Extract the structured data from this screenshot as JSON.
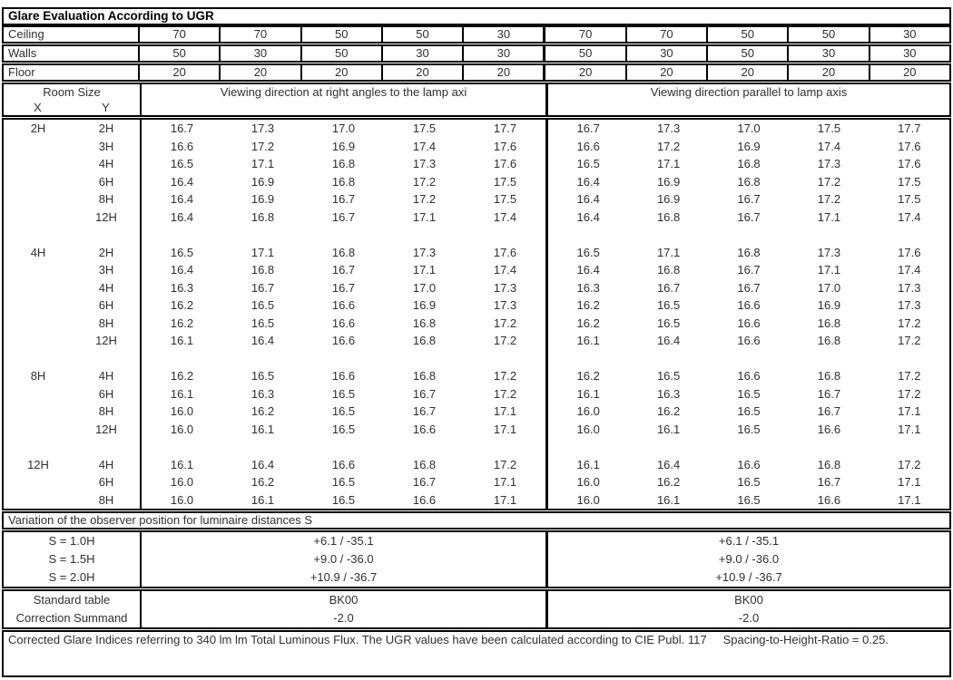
{
  "title": "Glare Evaluation According to UGR",
  "colors": {
    "border": "#000000",
    "text": "#303030",
    "background": "#ffffff"
  },
  "surfaces": [
    {
      "label": "Ceiling",
      "values": [
        "70",
        "70",
        "50",
        "50",
        "30",
        "70",
        "70",
        "50",
        "50",
        "30"
      ]
    },
    {
      "label": "Walls",
      "values": [
        "50",
        "30",
        "50",
        "30",
        "30",
        "50",
        "30",
        "50",
        "30",
        "30"
      ]
    },
    {
      "label": "Floor",
      "values": [
        "20",
        "20",
        "20",
        "20",
        "20",
        "20",
        "20",
        "20",
        "20",
        "20"
      ]
    }
  ],
  "headers": {
    "room_size": "Room Size",
    "x": "X",
    "y": "Y",
    "right_angles": "Viewing direction at right angles to the lamp axi",
    "parallel": "Viewing direction parallel to lamp axis"
  },
  "blocks": [
    {
      "x": "2H",
      "rows": [
        {
          "y": "2H",
          "right_angles": [
            "16.7",
            "17.3",
            "17.0",
            "17.5",
            "17.7"
          ],
          "parallel": [
            "16.7",
            "17.3",
            "17.0",
            "17.5",
            "17.7"
          ]
        },
        {
          "y": "3H",
          "right_angles": [
            "16.6",
            "17.2",
            "16.9",
            "17.4",
            "17.6"
          ],
          "parallel": [
            "16.6",
            "17.2",
            "16.9",
            "17.4",
            "17.6"
          ]
        },
        {
          "y": "4H",
          "right_angles": [
            "16.5",
            "17.1",
            "16.8",
            "17.3",
            "17.6"
          ],
          "parallel": [
            "16.5",
            "17.1",
            "16.8",
            "17.3",
            "17.6"
          ]
        },
        {
          "y": "6H",
          "right_angles": [
            "16.4",
            "16.9",
            "16.8",
            "17.2",
            "17.5"
          ],
          "parallel": [
            "16.4",
            "16.9",
            "16.8",
            "17.2",
            "17.5"
          ]
        },
        {
          "y": "8H",
          "right_angles": [
            "16.4",
            "16.9",
            "16.7",
            "17.2",
            "17.5"
          ],
          "parallel": [
            "16.4",
            "16.9",
            "16.7",
            "17.2",
            "17.5"
          ]
        },
        {
          "y": "12H",
          "right_angles": [
            "16.4",
            "16.8",
            "16.7",
            "17.1",
            "17.4"
          ],
          "parallel": [
            "16.4",
            "16.8",
            "16.7",
            "17.1",
            "17.4"
          ]
        }
      ]
    },
    {
      "x": "4H",
      "rows": [
        {
          "y": "2H",
          "right_angles": [
            "16.5",
            "17.1",
            "16.8",
            "17.3",
            "17.6"
          ],
          "parallel": [
            "16.5",
            "17.1",
            "16.8",
            "17.3",
            "17.6"
          ]
        },
        {
          "y": "3H",
          "right_angles": [
            "16.4",
            "16.8",
            "16.7",
            "17.1",
            "17.4"
          ],
          "parallel": [
            "16.4",
            "16.8",
            "16.7",
            "17.1",
            "17.4"
          ]
        },
        {
          "y": "4H",
          "right_angles": [
            "16.3",
            "16.7",
            "16.7",
            "17.0",
            "17.3"
          ],
          "parallel": [
            "16.3",
            "16.7",
            "16.7",
            "17.0",
            "17.3"
          ]
        },
        {
          "y": "6H",
          "right_angles": [
            "16.2",
            "16.5",
            "16.6",
            "16.9",
            "17.3"
          ],
          "parallel": [
            "16.2",
            "16.5",
            "16.6",
            "16.9",
            "17.3"
          ]
        },
        {
          "y": "8H",
          "right_angles": [
            "16.2",
            "16.5",
            "16.6",
            "16.8",
            "17.2"
          ],
          "parallel": [
            "16.2",
            "16.5",
            "16.6",
            "16.8",
            "17.2"
          ]
        },
        {
          "y": "12H",
          "right_angles": [
            "16.1",
            "16.4",
            "16.6",
            "16.8",
            "17.2"
          ],
          "parallel": [
            "16.1",
            "16.4",
            "16.6",
            "16.8",
            "17.2"
          ]
        }
      ]
    },
    {
      "x": "8H",
      "rows": [
        {
          "y": "4H",
          "right_angles": [
            "16.2",
            "16.5",
            "16.6",
            "16.8",
            "17.2"
          ],
          "parallel": [
            "16.2",
            "16.5",
            "16.6",
            "16.8",
            "17.2"
          ]
        },
        {
          "y": "6H",
          "right_angles": [
            "16.1",
            "16.3",
            "16.5",
            "16.7",
            "17.2"
          ],
          "parallel": [
            "16.1",
            "16.3",
            "16.5",
            "16.7",
            "17.2"
          ]
        },
        {
          "y": "8H",
          "right_angles": [
            "16.0",
            "16.2",
            "16.5",
            "16.7",
            "17.1"
          ],
          "parallel": [
            "16.0",
            "16.2",
            "16.5",
            "16.7",
            "17.1"
          ]
        },
        {
          "y": "12H",
          "right_angles": [
            "16.0",
            "16.1",
            "16.5",
            "16.6",
            "17.1"
          ],
          "parallel": [
            "16.0",
            "16.1",
            "16.5",
            "16.6",
            "17.1"
          ]
        }
      ]
    },
    {
      "x": "12H",
      "rows": [
        {
          "y": "4H",
          "right_angles": [
            "16.1",
            "16.4",
            "16.6",
            "16.8",
            "17.2"
          ],
          "parallel": [
            "16.1",
            "16.4",
            "16.6",
            "16.8",
            "17.2"
          ]
        },
        {
          "y": "6H",
          "right_angles": [
            "16.0",
            "16.2",
            "16.5",
            "16.7",
            "17.1"
          ],
          "parallel": [
            "16.0",
            "16.2",
            "16.5",
            "16.7",
            "17.1"
          ]
        },
        {
          "y": "8H",
          "right_angles": [
            "16.0",
            "16.1",
            "16.5",
            "16.6",
            "17.1"
          ],
          "parallel": [
            "16.0",
            "16.1",
            "16.5",
            "16.6",
            "17.1"
          ]
        }
      ]
    }
  ],
  "variation": {
    "title": "Variation of the observer position for luminaire distances S",
    "rows": [
      {
        "label": "S = 1.0H",
        "left": "+6.1 / -35.1",
        "right": "+6.1 / -35.1"
      },
      {
        "label": "S = 1.5H",
        "left": "+9.0 / -36.0",
        "right": "+9.0 / -36.0"
      },
      {
        "label": "S = 2.0H",
        "left": "+10.9 / -36.7",
        "right": "+10.9 / -36.7"
      }
    ]
  },
  "standard": {
    "rows": [
      {
        "label": "Standard table",
        "left": "BK00",
        "right": "BK00"
      },
      {
        "label": "Correction Summand",
        "left": "-2.0",
        "right": "-2.0"
      }
    ]
  },
  "footer": {
    "text1": "Corrected Glare Indices referring to 340 lm lm Total Luminous Flux. The UGR values have been calculated according to CIE Publ. 117",
    "text2": "Spacing-to-Height-Ratio = 0.25."
  }
}
